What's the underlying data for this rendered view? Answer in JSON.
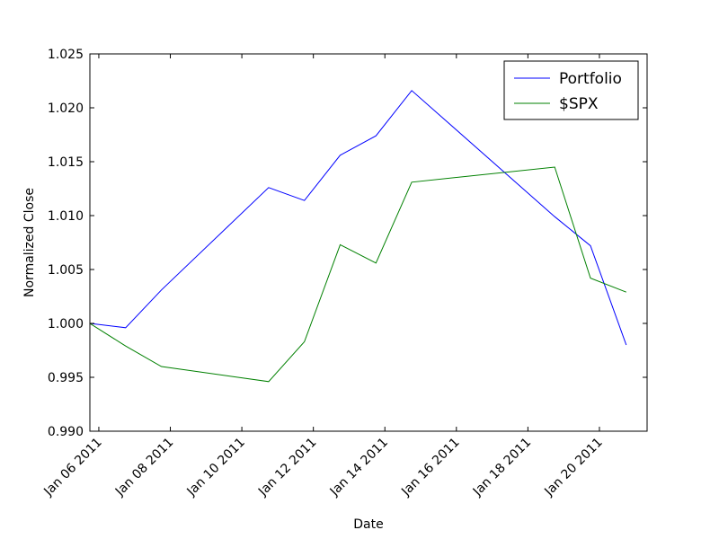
{
  "chart_data": {
    "type": "line",
    "title": "",
    "xlabel": "Date",
    "ylabel": "Normalized Close",
    "xlim": [
      "2011-01-05T18:00",
      "2011-01-21T08:00"
    ],
    "ylim": [
      0.99,
      1.025
    ],
    "yticks": [
      0.99,
      0.995,
      1.0,
      1.005,
      1.01,
      1.015,
      1.02,
      1.025
    ],
    "ytick_labels": [
      "0.990",
      "0.995",
      "1.000",
      "1.005",
      "1.010",
      "1.015",
      "1.020",
      "1.025"
    ],
    "xticks": [
      "2011-01-06",
      "2011-01-08",
      "2011-01-10",
      "2011-01-12",
      "2011-01-14",
      "2011-01-16",
      "2011-01-18",
      "2011-01-20"
    ],
    "xtick_labels": [
      "Jan 06 2011",
      "Jan 08 2011",
      "Jan 10 2011",
      "Jan 12 2011",
      "Jan 14 2011",
      "Jan 16 2011",
      "Jan 18 2011",
      "Jan 20 2011"
    ],
    "grid": false,
    "legend": "top-right",
    "x": [
      "2011-01-05T18:00",
      "2011-01-06T18:00",
      "2011-01-07T18:00",
      "2011-01-10T18:00",
      "2011-01-11T18:00",
      "2011-01-12T18:00",
      "2011-01-13T18:00",
      "2011-01-14T18:00",
      "2011-01-18T18:00",
      "2011-01-19T18:00",
      "2011-01-20T18:00"
    ],
    "series": [
      {
        "name": "Portfolio",
        "color": "#0000ff",
        "values": [
          1.0,
          0.9996,
          1.0031,
          1.0126,
          1.0114,
          1.0156,
          1.0174,
          1.0216,
          1.0099,
          1.0072,
          0.998
        ]
      },
      {
        "name": "$SPX",
        "color": "#008000",
        "values": [
          1.0,
          0.9979,
          0.996,
          0.9946,
          0.9983,
          1.0073,
          1.0056,
          1.0131,
          1.0145,
          1.0042,
          1.0029
        ]
      }
    ]
  }
}
